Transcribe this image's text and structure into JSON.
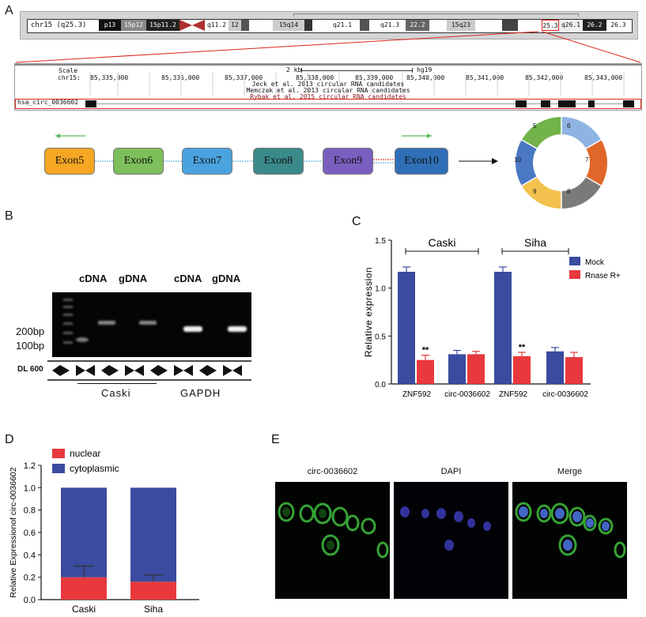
{
  "panels": {
    "a": "A",
    "b": "B",
    "c": "C",
    "d": "D",
    "e": "E"
  },
  "panel_a": {
    "chromosome": {
      "label": "chr15 (q25.3)",
      "bands": [
        "p13",
        "15p12",
        "15p11.2",
        "q11.2",
        "12",
        "15q14",
        "q21.1",
        "q21.3",
        "22.2",
        "15q23",
        "25.3",
        "q26.1",
        "26.2",
        "26.3"
      ]
    },
    "browser": {
      "scale_label": "Scale",
      "chrom_label": "chr15:",
      "scale_bar": "2 kb",
      "assembly": "hg19",
      "positions": [
        "85,335,000",
        "85,336,000",
        "85,337,000",
        "85,338,000",
        "85,339,000",
        "85,340,000",
        "85,341,000",
        "85,342,000",
        "85,343,000"
      ],
      "tracks": [
        "Jeck et al. 2013 circular RNA candidates",
        "Memczak et al. 2013 circular RNA candidates",
        "Rybak et al. 2015 circular RNA candidates"
      ],
      "circ_label": "hsa_circ_0036602"
    },
    "exons": [
      "Exon5",
      "Exon6",
      "Exon7",
      "Exon8",
      "Exon9",
      "Exon10"
    ],
    "ring_segments": [
      "5",
      "6",
      "7",
      "8",
      "9",
      "10"
    ],
    "colors": {
      "exon5": "#f5a623",
      "exon6": "#7dbf5a",
      "exon7": "#4aa3df",
      "exon8": "#3b8a8a",
      "exon9": "#7a5fc0",
      "exon10": "#2f6fb7",
      "arrow_green": "#5cb85c",
      "red_box": "#d9281e"
    }
  },
  "panel_b": {
    "lane_headers": [
      "cDNA",
      "gDNA",
      "cDNA",
      "gDNA"
    ],
    "markers": [
      "200bp",
      "100bp"
    ],
    "ladder": "DL 600",
    "groups": [
      "Caski",
      "GAPDH"
    ]
  },
  "panel_c": {
    "chart_data": {
      "type": "bar",
      "ylabel": "Relative expression",
      "ylim": [
        0,
        1.5
      ],
      "yticks": [
        "0.0",
        "0.5",
        "1.0",
        "1.5"
      ],
      "groups": [
        "Caski",
        "Siha"
      ],
      "categories": [
        "ZNF592",
        "circ-0036602",
        "ZNF592",
        "circ-0036602"
      ],
      "series": [
        {
          "name": "Mock",
          "color": "#3a4ba0",
          "values": [
            1.17,
            0.31,
            1.17,
            0.34
          ],
          "errors": [
            0.05,
            0.04,
            0.05,
            0.04
          ]
        },
        {
          "name": "Rnase R+",
          "color": "#e8393d",
          "values": [
            0.25,
            0.31,
            0.29,
            0.28
          ],
          "errors": [
            0.05,
            0.03,
            0.04,
            0.05
          ]
        }
      ],
      "annotations": [
        "**",
        "**"
      ]
    }
  },
  "panel_d": {
    "chart_data": {
      "type": "bar",
      "stacked": true,
      "ylabel": "Relative Expressionof circ-0036602",
      "ylim": [
        0,
        1.2
      ],
      "yticks": [
        "0.0",
        "0.2",
        "0.4",
        "0.6",
        "0.8",
        "1.0",
        "1.2"
      ],
      "categories": [
        "Caski",
        "Siha"
      ],
      "series": [
        {
          "name": "nuclear",
          "color": "#e8393d",
          "values": [
            0.2,
            0.16
          ],
          "errors": [
            0.1,
            0.06
          ]
        },
        {
          "name": "cytoplasmic",
          "color": "#3a4ba0",
          "values": [
            0.8,
            0.84
          ]
        }
      ]
    }
  },
  "panel_e": {
    "images": [
      "circ-0036602",
      "DAPI",
      "Merge"
    ]
  }
}
